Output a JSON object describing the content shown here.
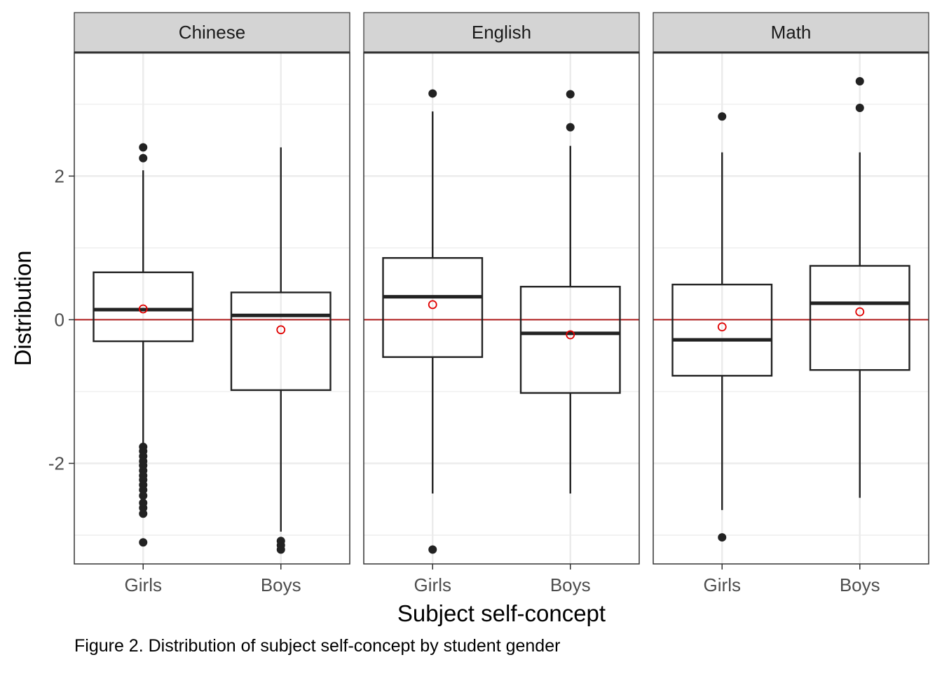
{
  "caption": "Figure 2. Distribution of subject self-concept by student gender",
  "chart_data": {
    "type": "boxplot",
    "facets": [
      "Chinese",
      "English",
      "Math"
    ],
    "categories": [
      "Girls",
      "Boys"
    ],
    "xlabel": "Subject self-concept",
    "ylabel": "Distribution",
    "ylim": [
      -3.4,
      3.72
    ],
    "yticks": [
      -2,
      0,
      2
    ],
    "ytick_labels": [
      "-2",
      "0",
      "2"
    ],
    "reference_line": 0,
    "grid": true,
    "colors": {
      "box": "#222222",
      "mean_marker": "#e00000",
      "reference_line": "#b22222",
      "strip_fill": "#d4d4d4",
      "grid": "#ebebeb"
    },
    "panels": [
      {
        "facet": "Chinese",
        "boxes": [
          {
            "group": "Girls",
            "q1": -0.3,
            "median": 0.14,
            "q3": 0.66,
            "whisker_low": -1.74,
            "whisker_high": 2.08,
            "mean": 0.15,
            "outliers": [
              2.4,
              2.25,
              -1.77,
              -1.83,
              -1.9,
              -1.97,
              -2.03,
              -2.1,
              -2.17,
              -2.23,
              -2.3,
              -2.37,
              -2.45,
              -2.55,
              -2.62,
              -2.7,
              -3.1
            ]
          },
          {
            "group": "Boys",
            "q1": -0.98,
            "median": 0.06,
            "q3": 0.38,
            "whisker_low": -2.95,
            "whisker_high": 2.4,
            "mean": -0.14,
            "outliers": [
              -3.08,
              -3.14,
              -3.2
            ]
          }
        ]
      },
      {
        "facet": "English",
        "boxes": [
          {
            "group": "Girls",
            "q1": -0.52,
            "median": 0.32,
            "q3": 0.86,
            "whisker_low": -2.42,
            "whisker_high": 2.9,
            "mean": 0.21,
            "outliers": [
              3.15,
              -3.2
            ]
          },
          {
            "group": "Boys",
            "q1": -1.02,
            "median": -0.19,
            "q3": 0.46,
            "whisker_low": -2.42,
            "whisker_high": 2.42,
            "mean": -0.21,
            "outliers": [
              3.14,
              2.68
            ]
          }
        ]
      },
      {
        "facet": "Math",
        "boxes": [
          {
            "group": "Girls",
            "q1": -0.78,
            "median": -0.28,
            "q3": 0.49,
            "whisker_low": -2.65,
            "whisker_high": 2.33,
            "mean": -0.1,
            "outliers": [
              2.83,
              -3.03
            ]
          },
          {
            "group": "Boys",
            "q1": -0.7,
            "median": 0.23,
            "q3": 0.75,
            "whisker_low": -2.48,
            "whisker_high": 2.33,
            "mean": 0.11,
            "outliers": [
              3.32,
              2.95
            ]
          }
        ]
      }
    ]
  }
}
